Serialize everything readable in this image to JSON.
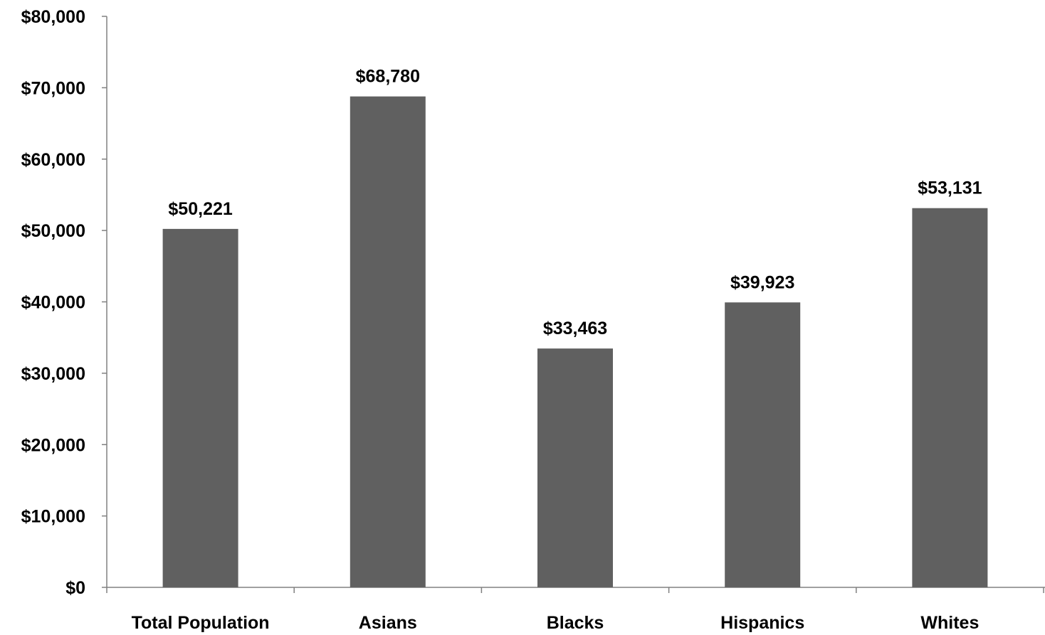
{
  "chart_data": {
    "type": "bar",
    "categories": [
      "Total Population",
      "Asians",
      "Blacks",
      "Hispanics",
      "Whites"
    ],
    "values": [
      50221,
      68780,
      33463,
      39923,
      53131
    ],
    "value_labels": [
      "$50,221",
      "$68,780",
      "$33,463",
      "$39,923",
      "$53,131"
    ],
    "y_ticks": [
      0,
      10000,
      20000,
      30000,
      40000,
      50000,
      60000,
      70000,
      80000
    ],
    "y_tick_labels": [
      "$0",
      "$10,000",
      "$20,000",
      "$30,000",
      "$40,000",
      "$50,000",
      "$60,000",
      "$70,000",
      "$80,000"
    ],
    "ylim": [
      0,
      80000
    ],
    "title": "",
    "xlabel": "",
    "ylabel": "",
    "grid": false,
    "legend": "none",
    "bar_color": "#606060",
    "axis_color": "#808080"
  }
}
